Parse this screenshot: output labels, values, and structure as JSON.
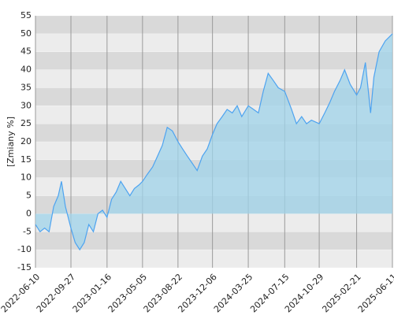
{
  "chart_data": {
    "type": "area",
    "y_label": "[Zmiany %]",
    "color": "#4da3f0",
    "fill": "#9fd3ea",
    "x": [
      "2022-06-10",
      "2022-06-24",
      "2022-07-08",
      "2022-07-22",
      "2022-08-05",
      "2022-08-19",
      "2022-08-29",
      "2022-09-10",
      "2022-09-27",
      "2022-10-10",
      "2022-10-24",
      "2022-11-07",
      "2022-11-21",
      "2022-12-05",
      "2022-12-19",
      "2023-01-02",
      "2023-01-16",
      "2023-01-30",
      "2023-02-13",
      "2023-02-27",
      "2023-03-13",
      "2023-03-27",
      "2023-04-10",
      "2023-04-24",
      "2023-05-05",
      "2023-05-20",
      "2023-06-05",
      "2023-06-20",
      "2023-07-05",
      "2023-07-20",
      "2023-08-05",
      "2023-08-22",
      "2023-09-05",
      "2023-09-20",
      "2023-10-05",
      "2023-10-20",
      "2023-11-05",
      "2023-11-20",
      "2023-12-06",
      "2023-12-20",
      "2024-01-05",
      "2024-01-20",
      "2024-02-05",
      "2024-02-20",
      "2024-03-05",
      "2024-03-25",
      "2024-04-10",
      "2024-04-25",
      "2024-05-10",
      "2024-05-25",
      "2024-06-10",
      "2024-06-25",
      "2024-07-15",
      "2024-08-05",
      "2024-08-20",
      "2024-09-05",
      "2024-09-20",
      "2024-10-05",
      "2024-10-29",
      "2024-11-15",
      "2024-12-01",
      "2024-12-15",
      "2025-01-01",
      "2025-01-15",
      "2025-02-01",
      "2025-02-21",
      "2025-03-05",
      "2025-03-20",
      "2025-04-05",
      "2025-04-15",
      "2025-05-01",
      "2025-05-20",
      "2025-06-11"
    ],
    "values": [
      -3,
      -5,
      -4,
      -5,
      2,
      5,
      9,
      2,
      -4,
      -8,
      -10,
      -8,
      -3,
      -5,
      0,
      1,
      -1,
      4,
      6,
      9,
      7,
      5,
      7,
      8,
      9,
      11,
      13,
      16,
      19,
      24,
      23,
      20,
      18,
      16,
      14,
      12,
      16,
      18,
      22,
      25,
      27,
      29,
      28,
      30,
      27,
      30,
      29,
      28,
      34,
      39,
      37,
      35,
      34,
      29,
      25,
      27,
      25,
      26,
      25,
      28,
      31,
      34,
      37,
      40,
      36,
      33,
      35,
      42,
      28,
      38,
      45,
      48,
      50
    ],
    "xlim": [
      "2022-06-10",
      "2025-06-11"
    ],
    "xticks": [
      "2022-06-10",
      "2022-09-27",
      "2023-01-16",
      "2023-05-05",
      "2023-08-22",
      "2023-12-06",
      "2024-03-25",
      "2024-07-15",
      "2024-10-29",
      "2025-02-21",
      "2025-06-11"
    ],
    "ylim": [
      -15,
      55
    ],
    "yticks": [
      -15,
      -10,
      -5,
      0,
      5,
      10,
      15,
      20,
      25,
      30,
      35,
      40,
      45,
      50,
      55
    ],
    "grid": true
  }
}
